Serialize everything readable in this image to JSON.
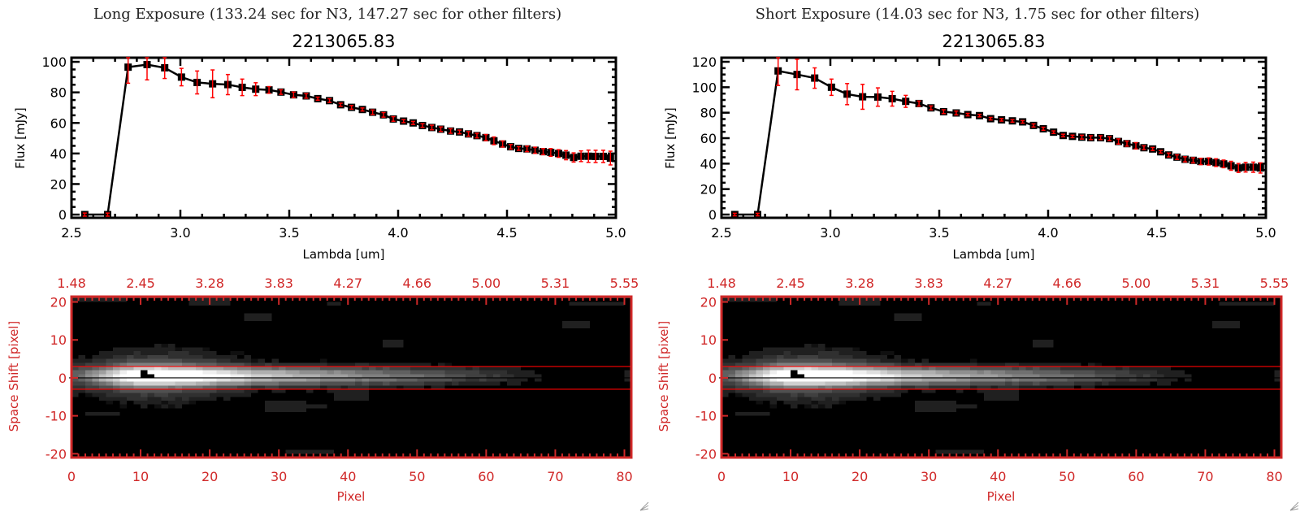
{
  "panels": [
    {
      "title": "Long Exposure (133.24 sec for N3, 147.27 sec for other filters)",
      "object_id": "2213065.83"
    },
    {
      "title": "Short Exposure (14.03 sec for N3, 1.75 sec for other filters)",
      "object_id": "2213065.83"
    }
  ],
  "colors": {
    "spectrum_line": "#000000",
    "error_bar": "#ff0000",
    "image_axis": "#d02828",
    "extraction_aperture": "#ff0000",
    "trace_center": "#000000"
  },
  "icons": {
    "resize": "resize-grip-icon"
  },
  "chart_data": [
    {
      "type": "line",
      "panel": 0,
      "xlabel": "Lambda [um]",
      "ylabel": "Flux [mJy]",
      "xlim": [
        2.5,
        5.0
      ],
      "ylim": [
        -2.1,
        102.7
      ],
      "xticks": [
        "2.5",
        "3.0",
        "3.5",
        "4.0",
        "4.5",
        "5.0"
      ],
      "yticks": [
        "0",
        "20",
        "40",
        "60",
        "80",
        "100"
      ],
      "markers": "filled-square",
      "error_bars": true,
      "x": [
        2.561,
        2.666,
        2.76,
        2.847,
        2.928,
        3.005,
        3.077,
        3.148,
        3.218,
        3.284,
        3.346,
        3.407,
        3.462,
        3.52,
        3.578,
        3.631,
        3.685,
        3.736,
        3.786,
        3.836,
        3.883,
        3.933,
        3.978,
        4.025,
        4.069,
        4.112,
        4.155,
        4.196,
        4.241,
        4.282,
        4.323,
        4.362,
        4.403,
        4.44,
        4.48,
        4.517,
        4.554,
        4.592,
        4.629,
        4.666,
        4.701,
        4.737,
        4.771,
        4.806,
        4.84,
        4.874,
        4.907,
        4.942,
        4.975
      ],
      "y": [
        0,
        0,
        96.5,
        98.2,
        96.1,
        90.0,
        86.5,
        85.6,
        85.1,
        83.3,
        82.1,
        81.6,
        80.2,
        78.4,
        77.7,
        75.9,
        74.6,
        71.9,
        70.2,
        68.8,
        67.0,
        65.3,
        62.6,
        61.2,
        60.0,
        58.3,
        57.0,
        55.9,
        54.7,
        54.1,
        52.8,
        51.7,
        50.4,
        48.3,
        46.2,
        44.4,
        43.3,
        43.0,
        42.1,
        41.2,
        40.7,
        40.0,
        38.9,
        37.4,
        38.2,
        38.2,
        38.1,
        38.1,
        37.0
      ],
      "yerr": [
        1,
        1,
        10.5,
        10,
        7,
        5.7,
        7.5,
        9.1,
        6.6,
        5.4,
        4.2,
        2.2,
        1.5,
        1.8,
        1.5,
        1,
        1.2,
        1,
        1.2,
        1,
        1.5,
        1.5,
        1.5,
        1,
        1,
        1.2,
        1.5,
        1.5,
        1.5,
        1.2,
        1.5,
        1.5,
        2,
        2.5,
        2,
        1.5,
        1.2,
        1.8,
        2,
        2,
        2.5,
        2.5,
        3,
        3,
        3.5,
        4,
        4,
        4,
        4.5
      ]
    },
    {
      "type": "line",
      "panel": 1,
      "xlabel": "Lambda [um]",
      "ylabel": "Flux [mJy]",
      "xlim": [
        2.5,
        5.0
      ],
      "ylim": [
        -2.55,
        123.2
      ],
      "xticks": [
        "2.5",
        "3.0",
        "3.5",
        "4.0",
        "4.5",
        "5.0"
      ],
      "yticks": [
        "0",
        "20",
        "40",
        "60",
        "80",
        "100",
        "120"
      ],
      "markers": "filled-square",
      "error_bars": true,
      "x": [
        2.561,
        2.666,
        2.76,
        2.847,
        2.928,
        3.005,
        3.077,
        3.148,
        3.218,
        3.284,
        3.346,
        3.407,
        3.462,
        3.52,
        3.578,
        3.631,
        3.685,
        3.736,
        3.786,
        3.836,
        3.883,
        3.933,
        3.978,
        4.025,
        4.069,
        4.112,
        4.155,
        4.196,
        4.241,
        4.282,
        4.323,
        4.362,
        4.403,
        4.44,
        4.48,
        4.517,
        4.554,
        4.592,
        4.629,
        4.666,
        4.701,
        4.737,
        4.771,
        4.806,
        4.84,
        4.874,
        4.907,
        4.942,
        4.975
      ],
      "y": [
        0,
        0,
        112.8,
        110,
        107.2,
        100,
        94.6,
        92.5,
        92.3,
        91.0,
        88.9,
        87.2,
        83.8,
        80.8,
        79.8,
        78.5,
        77.7,
        75.3,
        74.4,
        73.6,
        72.8,
        70.0,
        67.4,
        64.7,
        62.1,
        61.4,
        60.8,
        60.4,
        60.4,
        59.6,
        57.4,
        55.7,
        54.0,
        52.5,
        51.5,
        49.3,
        46.8,
        45.1,
        43.4,
        42.6,
        41.7,
        41.7,
        40.8,
        39.8,
        38.3,
        36.6,
        37.2,
        37.2,
        36.6
      ],
      "yerr": [
        1,
        1,
        11.4,
        12,
        8,
        6.4,
        8.3,
        9.8,
        7.2,
        5.8,
        4.7,
        2,
        1.5,
        1.5,
        1.5,
        1,
        1,
        1,
        1,
        1,
        1,
        1.2,
        1.2,
        1,
        1,
        1,
        1.5,
        1.5,
        1.5,
        1.5,
        2,
        2,
        2.5,
        1.5,
        1.2,
        1,
        1.5,
        1.8,
        2,
        2,
        2.5,
        2.8,
        3,
        3,
        3.5,
        3.5,
        3.8,
        4,
        4
      ]
    },
    {
      "type": "heatmap",
      "panel": 0,
      "xlabel": "Pixel",
      "ylabel": "Space Shift [pixel]",
      "xlim": [
        0,
        81
      ],
      "ylim": [
        -21,
        21.4
      ],
      "xticks": [
        "0",
        "10",
        "20",
        "30",
        "40",
        "50",
        "60",
        "70",
        "80"
      ],
      "yticks": [
        "-20",
        "-10",
        "0",
        "10",
        "20"
      ],
      "top_xticks": [
        "1.48",
        "2.45",
        "3.28",
        "3.83",
        "4.27",
        "4.66",
        "5.00",
        "5.31",
        "5.55"
      ],
      "colormap": "grayscale",
      "aperture_lines": [
        3,
        -3
      ],
      "trace_center": 0
    },
    {
      "type": "heatmap",
      "panel": 1,
      "xlabel": "Pixel",
      "ylabel": "Space Shift [pixel]",
      "xlim": [
        0,
        81
      ],
      "ylim": [
        -21,
        21.4
      ],
      "xticks": [
        "0",
        "10",
        "20",
        "30",
        "40",
        "50",
        "60",
        "70",
        "80"
      ],
      "yticks": [
        "-20",
        "-10",
        "0",
        "10",
        "20"
      ],
      "top_xticks": [
        "1.48",
        "2.45",
        "3.28",
        "3.83",
        "4.27",
        "4.66",
        "5.00",
        "5.31",
        "5.55"
      ],
      "colormap": "grayscale",
      "aperture_lines": [
        3,
        -3
      ],
      "trace_center": 0
    }
  ]
}
